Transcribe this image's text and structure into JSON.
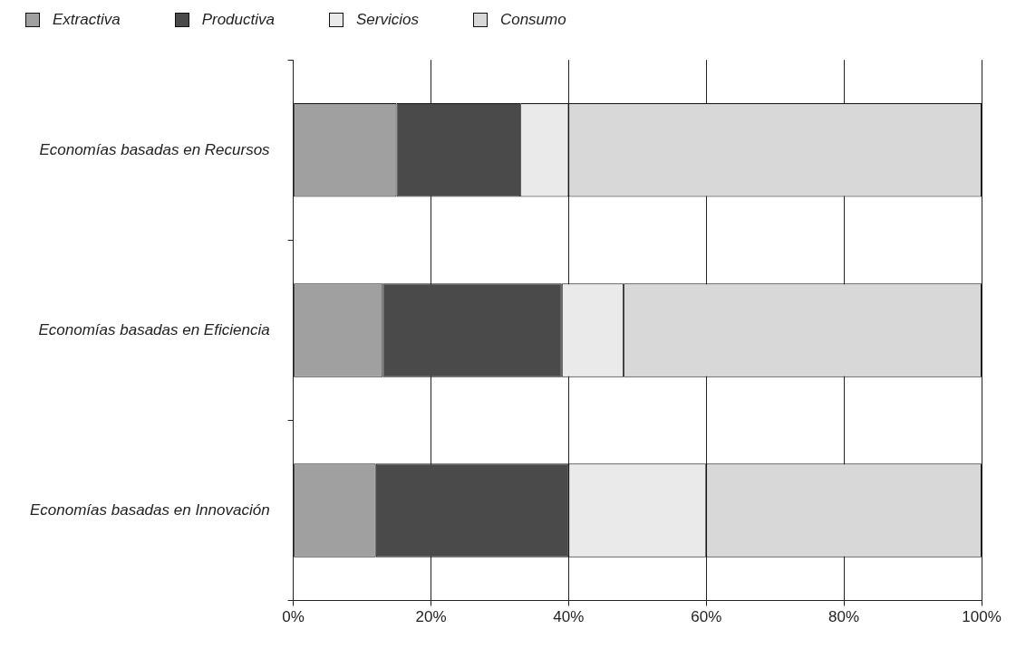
{
  "chart_data": {
    "type": "bar",
    "orientation": "horizontal",
    "stacked": true,
    "categories": [
      "Economías basadas en Recursos",
      "Economías basadas en Eficiencia",
      "Economías basadas en Innovación"
    ],
    "series": [
      {
        "name": "Extractiva",
        "color": "#a0a0a0",
        "values": [
          15,
          13,
          12
        ]
      },
      {
        "name": "Productiva",
        "color": "#4a4a4a",
        "values": [
          18,
          26,
          28
        ]
      },
      {
        "name": "Servicios",
        "color": "#eaeaea",
        "values": [
          7,
          9,
          20
        ]
      },
      {
        "name": "Consumo",
        "color": "#d8d8d8",
        "values": [
          60,
          52,
          40
        ]
      }
    ],
    "xlim": [
      0,
      100
    ],
    "xticks": [
      {
        "value": 0,
        "label": "0%"
      },
      {
        "value": 20,
        "label": "20%"
      },
      {
        "value": 40,
        "label": "40%"
      },
      {
        "value": 60,
        "label": "60%"
      },
      {
        "value": 80,
        "label": "80%"
      },
      {
        "value": 100,
        "label": "100%"
      }
    ],
    "grid": "x",
    "legend": "top"
  }
}
